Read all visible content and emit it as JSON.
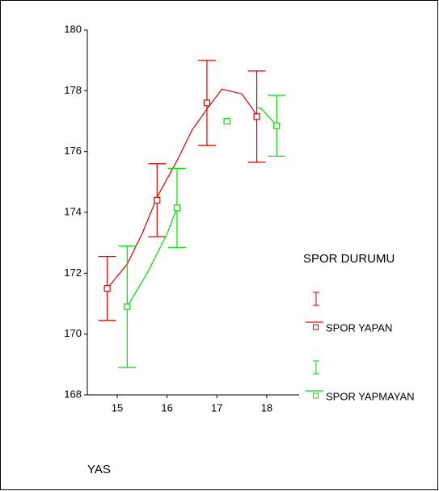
{
  "chart_data": {
    "type": "errorbar",
    "xlabel": "YAS",
    "legend_title": "SPOR DURUMU",
    "legend": "right",
    "xlim": [
      14.4,
      18.65
    ],
    "xticks": [
      15,
      16,
      17,
      18
    ],
    "ylim": [
      168,
      180
    ],
    "yticks": [
      168,
      170,
      172,
      174,
      176,
      178,
      180
    ],
    "series": [
      {
        "name": "SPOR YAPAN",
        "color": "#e00000",
        "x": [
          14.8,
          15.8,
          16.8,
          17.8
        ],
        "values": [
          171.5,
          174.4,
          177.6,
          177.15
        ],
        "errors": [
          1.05,
          1.2,
          1.4,
          1.5
        ],
        "line": {
          "x": [
            14.8,
            15.2,
            15.5,
            15.8,
            16.2,
            16.5,
            16.8,
            17.1,
            17.5,
            17.8
          ],
          "y": [
            171.5,
            172.3,
            173.3,
            174.5,
            175.7,
            176.7,
            177.4,
            178.05,
            177.9,
            177.2
          ]
        }
      },
      {
        "name": "SPOR YAPMAYAN",
        "color": "#00e000",
        "x": [
          15.2,
          16.2,
          17.2,
          18.2
        ],
        "values": [
          170.9,
          174.15,
          177.0,
          176.85
        ],
        "errors": [
          2.0,
          1.3,
          0,
          1.0
        ],
        "line": {
          "x": [
            15.2,
            15.6,
            16.0,
            16.2,
            null,
            17.8,
            17.9,
            18.2
          ],
          "y": [
            170.9,
            172.0,
            173.3,
            174.15,
            null,
            177.45,
            177.4,
            176.85
          ]
        }
      }
    ]
  }
}
